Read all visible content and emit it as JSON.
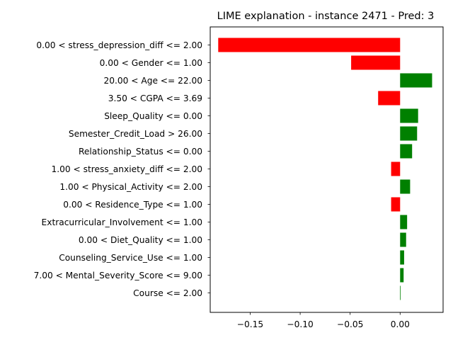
{
  "chart_data": {
    "type": "bar",
    "orientation": "horizontal",
    "title": "LIME explanation - instance 2471 - Pred: 3",
    "xlabel": "",
    "ylabel": "",
    "xlim": [
      -0.19,
      0.043
    ],
    "xticks": [
      -0.15,
      -0.1,
      -0.05,
      0.0
    ],
    "xtick_labels": [
      "−0.15",
      "−0.10",
      "−0.05",
      "0.00"
    ],
    "grid": false,
    "colors": {
      "positive": "#008000",
      "negative": "#ff0000"
    },
    "categories": [
      "0.00 < stress_depression_diff <= 2.00",
      "0.00 < Gender <= 1.00",
      "20.00 < Age <= 22.00",
      "3.50 < CGPA <= 3.69",
      "Sleep_Quality <= 0.00",
      "Semester_Credit_Load > 26.00",
      "Relationship_Status <= 0.00",
      "1.00 < stress_anxiety_diff <= 2.00",
      "1.00 < Physical_Activity <= 2.00",
      "0.00 < Residence_Type <= 1.00",
      "Extracurricular_Involvement <= 1.00",
      "0.00 < Diet_Quality <= 1.00",
      "Counseling_Service_Use <= 1.00",
      "7.00 < Mental_Severity_Score <= 9.00",
      "Course <= 2.00"
    ],
    "values": [
      -0.182,
      -0.049,
      0.032,
      -0.022,
      0.018,
      0.017,
      0.012,
      -0.009,
      0.01,
      -0.009,
      0.007,
      0.006,
      0.004,
      0.0035,
      0.0005
    ]
  }
}
